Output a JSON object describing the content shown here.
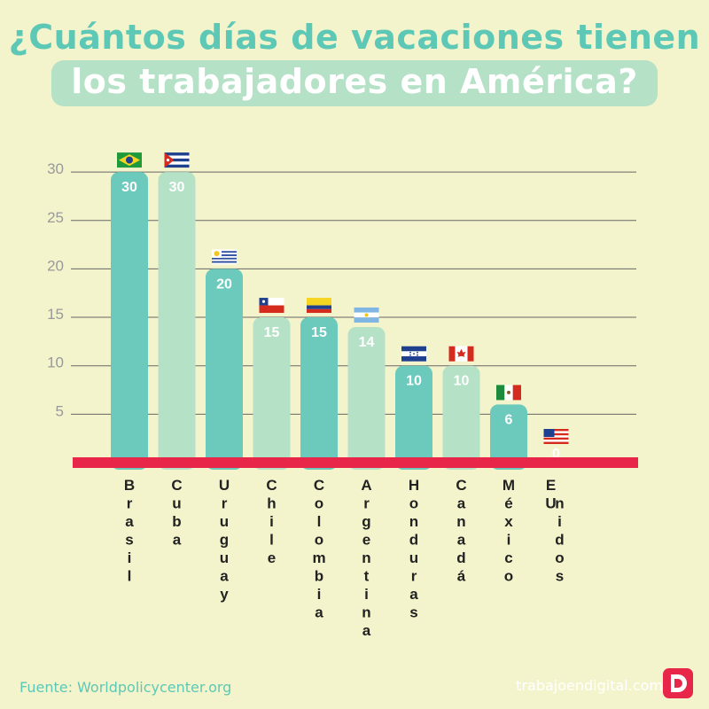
{
  "title": {
    "line1": "¿Cuántos días de vacaciones tienen",
    "line2": "los trabajadores en América?"
  },
  "footer": {
    "source": "Fuente: Worldpolicycenter.org",
    "brand": "trabajoendigital.com"
  },
  "colors": {
    "background": "#f4f4cc",
    "bar_dark": "#6ccabd",
    "bar_light": "#b5e1c7",
    "baseline": "#e8264a",
    "title": "#5cc8b5"
  },
  "chart_data": {
    "type": "bar",
    "ylim": [
      0,
      30
    ],
    "yticks": [
      5,
      10,
      15,
      20,
      25,
      30
    ],
    "grid": true,
    "categories": [
      "Brasil",
      "Cuba",
      "Uruguay",
      "Chile",
      "Colombia",
      "Argentina",
      "Honduras",
      "Canadá",
      "México",
      "EU nidos"
    ],
    "category_lines": [
      [
        "Brasil"
      ],
      [
        "Cuba"
      ],
      [
        "Uruguay"
      ],
      [
        "Chile"
      ],
      [
        "Colombia"
      ],
      [
        "Argentina"
      ],
      [
        "Honduras"
      ],
      [
        "Canadá"
      ],
      [
        "México"
      ],
      [
        "EU",
        "nidos"
      ]
    ],
    "values": [
      30,
      30,
      20,
      15,
      15,
      14,
      10,
      10,
      6,
      0
    ],
    "flags": [
      "brazil-flag-icon",
      "cuba-flag-icon",
      "uruguay-flag-icon",
      "chile-flag-icon",
      "colombia-flag-icon",
      "argentina-flag-icon",
      "honduras-flag-icon",
      "canada-flag-icon",
      "mexico-flag-icon",
      "usa-flag-icon"
    ]
  }
}
